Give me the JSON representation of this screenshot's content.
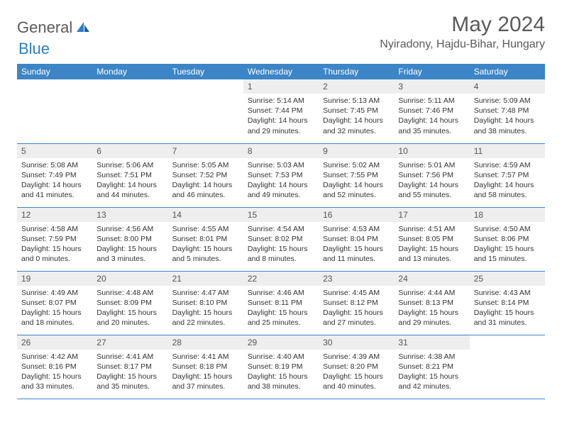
{
  "logo": {
    "text1": "General",
    "text2": "Blue"
  },
  "title": "May 2024",
  "location": "Nyiradony, Hajdu-Bihar, Hungary",
  "colors": {
    "header_bg": "#3c85c6",
    "header_text": "#ffffff",
    "daynum_bg": "#eeeeee",
    "border": "#3c85c6",
    "logo_gray": "#5a5a5a",
    "logo_blue": "#2a7fc9"
  },
  "weekdays": [
    "Sunday",
    "Monday",
    "Tuesday",
    "Wednesday",
    "Thursday",
    "Friday",
    "Saturday"
  ],
  "weeks": [
    [
      {
        "empty": true
      },
      {
        "empty": true
      },
      {
        "empty": true
      },
      {
        "n": "1",
        "sunrise": "Sunrise: 5:14 AM",
        "sunset": "Sunset: 7:44 PM",
        "d1": "Daylight: 14 hours",
        "d2": "and 29 minutes."
      },
      {
        "n": "2",
        "sunrise": "Sunrise: 5:13 AM",
        "sunset": "Sunset: 7:45 PM",
        "d1": "Daylight: 14 hours",
        "d2": "and 32 minutes."
      },
      {
        "n": "3",
        "sunrise": "Sunrise: 5:11 AM",
        "sunset": "Sunset: 7:46 PM",
        "d1": "Daylight: 14 hours",
        "d2": "and 35 minutes."
      },
      {
        "n": "4",
        "sunrise": "Sunrise: 5:09 AM",
        "sunset": "Sunset: 7:48 PM",
        "d1": "Daylight: 14 hours",
        "d2": "and 38 minutes."
      }
    ],
    [
      {
        "n": "5",
        "sunrise": "Sunrise: 5:08 AM",
        "sunset": "Sunset: 7:49 PM",
        "d1": "Daylight: 14 hours",
        "d2": "and 41 minutes."
      },
      {
        "n": "6",
        "sunrise": "Sunrise: 5:06 AM",
        "sunset": "Sunset: 7:51 PM",
        "d1": "Daylight: 14 hours",
        "d2": "and 44 minutes."
      },
      {
        "n": "7",
        "sunrise": "Sunrise: 5:05 AM",
        "sunset": "Sunset: 7:52 PM",
        "d1": "Daylight: 14 hours",
        "d2": "and 46 minutes."
      },
      {
        "n": "8",
        "sunrise": "Sunrise: 5:03 AM",
        "sunset": "Sunset: 7:53 PM",
        "d1": "Daylight: 14 hours",
        "d2": "and 49 minutes."
      },
      {
        "n": "9",
        "sunrise": "Sunrise: 5:02 AM",
        "sunset": "Sunset: 7:55 PM",
        "d1": "Daylight: 14 hours",
        "d2": "and 52 minutes."
      },
      {
        "n": "10",
        "sunrise": "Sunrise: 5:01 AM",
        "sunset": "Sunset: 7:56 PM",
        "d1": "Daylight: 14 hours",
        "d2": "and 55 minutes."
      },
      {
        "n": "11",
        "sunrise": "Sunrise: 4:59 AM",
        "sunset": "Sunset: 7:57 PM",
        "d1": "Daylight: 14 hours",
        "d2": "and 58 minutes."
      }
    ],
    [
      {
        "n": "12",
        "sunrise": "Sunrise: 4:58 AM",
        "sunset": "Sunset: 7:59 PM",
        "d1": "Daylight: 15 hours",
        "d2": "and 0 minutes."
      },
      {
        "n": "13",
        "sunrise": "Sunrise: 4:56 AM",
        "sunset": "Sunset: 8:00 PM",
        "d1": "Daylight: 15 hours",
        "d2": "and 3 minutes."
      },
      {
        "n": "14",
        "sunrise": "Sunrise: 4:55 AM",
        "sunset": "Sunset: 8:01 PM",
        "d1": "Daylight: 15 hours",
        "d2": "and 5 minutes."
      },
      {
        "n": "15",
        "sunrise": "Sunrise: 4:54 AM",
        "sunset": "Sunset: 8:02 PM",
        "d1": "Daylight: 15 hours",
        "d2": "and 8 minutes."
      },
      {
        "n": "16",
        "sunrise": "Sunrise: 4:53 AM",
        "sunset": "Sunset: 8:04 PM",
        "d1": "Daylight: 15 hours",
        "d2": "and 11 minutes."
      },
      {
        "n": "17",
        "sunrise": "Sunrise: 4:51 AM",
        "sunset": "Sunset: 8:05 PM",
        "d1": "Daylight: 15 hours",
        "d2": "and 13 minutes."
      },
      {
        "n": "18",
        "sunrise": "Sunrise: 4:50 AM",
        "sunset": "Sunset: 8:06 PM",
        "d1": "Daylight: 15 hours",
        "d2": "and 15 minutes."
      }
    ],
    [
      {
        "n": "19",
        "sunrise": "Sunrise: 4:49 AM",
        "sunset": "Sunset: 8:07 PM",
        "d1": "Daylight: 15 hours",
        "d2": "and 18 minutes."
      },
      {
        "n": "20",
        "sunrise": "Sunrise: 4:48 AM",
        "sunset": "Sunset: 8:09 PM",
        "d1": "Daylight: 15 hours",
        "d2": "and 20 minutes."
      },
      {
        "n": "21",
        "sunrise": "Sunrise: 4:47 AM",
        "sunset": "Sunset: 8:10 PM",
        "d1": "Daylight: 15 hours",
        "d2": "and 22 minutes."
      },
      {
        "n": "22",
        "sunrise": "Sunrise: 4:46 AM",
        "sunset": "Sunset: 8:11 PM",
        "d1": "Daylight: 15 hours",
        "d2": "and 25 minutes."
      },
      {
        "n": "23",
        "sunrise": "Sunrise: 4:45 AM",
        "sunset": "Sunset: 8:12 PM",
        "d1": "Daylight: 15 hours",
        "d2": "and 27 minutes."
      },
      {
        "n": "24",
        "sunrise": "Sunrise: 4:44 AM",
        "sunset": "Sunset: 8:13 PM",
        "d1": "Daylight: 15 hours",
        "d2": "and 29 minutes."
      },
      {
        "n": "25",
        "sunrise": "Sunrise: 4:43 AM",
        "sunset": "Sunset: 8:14 PM",
        "d1": "Daylight: 15 hours",
        "d2": "and 31 minutes."
      }
    ],
    [
      {
        "n": "26",
        "sunrise": "Sunrise: 4:42 AM",
        "sunset": "Sunset: 8:16 PM",
        "d1": "Daylight: 15 hours",
        "d2": "and 33 minutes."
      },
      {
        "n": "27",
        "sunrise": "Sunrise: 4:41 AM",
        "sunset": "Sunset: 8:17 PM",
        "d1": "Daylight: 15 hours",
        "d2": "and 35 minutes."
      },
      {
        "n": "28",
        "sunrise": "Sunrise: 4:41 AM",
        "sunset": "Sunset: 8:18 PM",
        "d1": "Daylight: 15 hours",
        "d2": "and 37 minutes."
      },
      {
        "n": "29",
        "sunrise": "Sunrise: 4:40 AM",
        "sunset": "Sunset: 8:19 PM",
        "d1": "Daylight: 15 hours",
        "d2": "and 38 minutes."
      },
      {
        "n": "30",
        "sunrise": "Sunrise: 4:39 AM",
        "sunset": "Sunset: 8:20 PM",
        "d1": "Daylight: 15 hours",
        "d2": "and 40 minutes."
      },
      {
        "n": "31",
        "sunrise": "Sunrise: 4:38 AM",
        "sunset": "Sunset: 8:21 PM",
        "d1": "Daylight: 15 hours",
        "d2": "and 42 minutes."
      },
      {
        "empty": true
      }
    ]
  ]
}
